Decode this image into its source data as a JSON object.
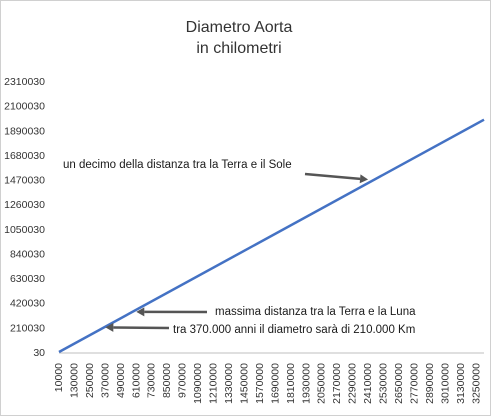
{
  "chart_data": {
    "type": "line",
    "title": [
      "Diametro Aorta",
      "in chilometri"
    ],
    "xlabel": "",
    "ylabel": "",
    "grid": false,
    "x_ticks": [
      10000,
      130000,
      250000,
      370000,
      490000,
      610000,
      730000,
      850000,
      970000,
      1090000,
      1210000,
      1330000,
      1450000,
      1570000,
      1690000,
      1810000,
      1930000,
      2050000,
      2170000,
      2290000,
      2410000,
      2530000,
      2650000,
      2770000,
      2890000,
      3010000,
      3130000,
      3250000
    ],
    "y_ticks": [
      30,
      210030,
      420030,
      630030,
      840030,
      1050030,
      1260030,
      1470030,
      1680030,
      1890030,
      2100030,
      2310030
    ],
    "xlim": [
      10000,
      3310000
    ],
    "ylim": [
      30,
      2310030
    ],
    "series": [
      {
        "x": [
          10000,
          3310000
        ],
        "y": [
          30,
          1980000
        ],
        "color": "#4472c4"
      }
    ],
    "annotations": [
      {
        "text": "un decimo della distanza tra la Terra e il Sole",
        "arrow_to": [
          2410000,
          1470030
        ]
      },
      {
        "text": "massima distanza tra la Terra e la Luna",
        "arrow_to": [
          610000,
          342000
        ]
      },
      {
        "text": "tra 370.000 anni il diametro sarà di 210.000 Km",
        "arrow_to": [
          370000,
          210030
        ]
      }
    ]
  }
}
